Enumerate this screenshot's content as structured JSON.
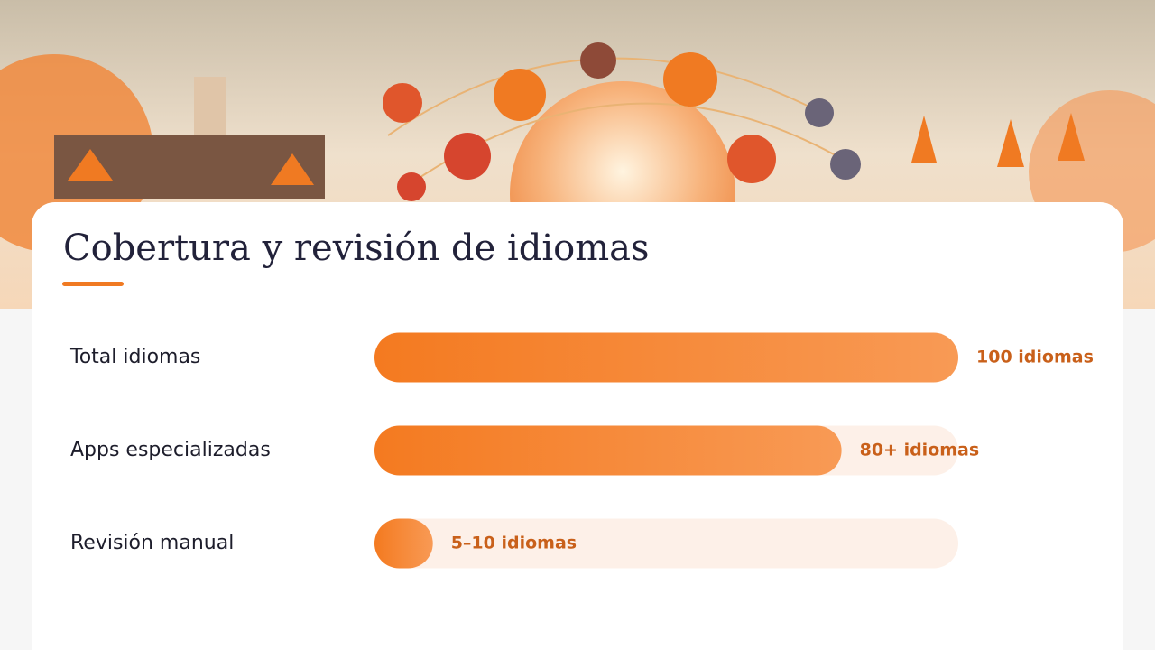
{
  "chart_data": {
    "type": "bar",
    "orientation": "horizontal",
    "title": "Cobertura y revisión de idiomas",
    "categories": [
      "Total idiomas",
      "Apps especializadas",
      "Revisión manual"
    ],
    "values": [
      100,
      80,
      10
    ],
    "value_labels": [
      "100 idiomas",
      "80+ idiomas",
      "5–10 idiomas"
    ],
    "color": "#f47a20",
    "xlim": [
      0,
      100
    ]
  }
}
